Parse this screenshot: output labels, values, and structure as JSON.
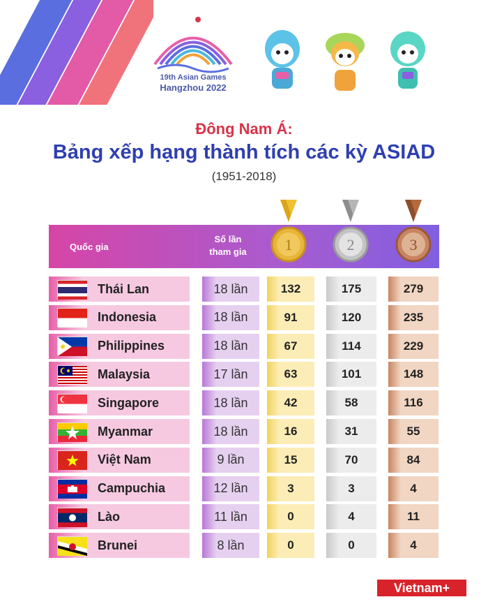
{
  "logo": {
    "line1": "19th Asian Games",
    "line2": "Hangzhou 2022"
  },
  "title": {
    "line1": "Đông Nam Á:",
    "line2": "Bảng xếp hạng thành tích các kỳ ASIAD",
    "line3": "(1951-2018)"
  },
  "header": {
    "country": "Quốc gia",
    "count_line1": "Số lần",
    "count_line2": "tham gia",
    "gold_number": "1",
    "silver_number": "2",
    "bronze_number": "3"
  },
  "brand": "Vietnam+",
  "chart_data": {
    "type": "table",
    "columns": [
      "Quốc gia",
      "Số lần tham gia",
      "Vàng",
      "Bạc",
      "Đồng"
    ],
    "rows": [
      {
        "country": "Thái Lan",
        "participations": "18 lần",
        "gold": 132,
        "silver": 175,
        "bronze": 279,
        "flag": "thailand"
      },
      {
        "country": "Indonesia",
        "participations": "18 lần",
        "gold": 91,
        "silver": 120,
        "bronze": 235,
        "flag": "indonesia"
      },
      {
        "country": "Philippines",
        "participations": "18 lần",
        "gold": 67,
        "silver": 114,
        "bronze": 229,
        "flag": "philippines"
      },
      {
        "country": "Malaysia",
        "participations": "17 lần",
        "gold": 63,
        "silver": 101,
        "bronze": 148,
        "flag": "malaysia"
      },
      {
        "country": "Singapore",
        "participations": "18 lần",
        "gold": 42,
        "silver": 58,
        "bronze": 116,
        "flag": "singapore"
      },
      {
        "country": "Myanmar",
        "participations": "18 lần",
        "gold": 16,
        "silver": 31,
        "bronze": 55,
        "flag": "myanmar"
      },
      {
        "country": "Việt Nam",
        "participations": "9 lần",
        "gold": 15,
        "silver": 70,
        "bronze": 84,
        "flag": "vietnam"
      },
      {
        "country": "Campuchia",
        "participations": "12 lần",
        "gold": 3,
        "silver": 3,
        "bronze": 4,
        "flag": "cambodia"
      },
      {
        "country": "Lào",
        "participations": "11 lần",
        "gold": 0,
        "silver": 4,
        "bronze": 11,
        "flag": "laos"
      },
      {
        "country": "Brunei",
        "participations": "8 lần",
        "gold": 0,
        "silver": 0,
        "bronze": 4,
        "flag": "brunei"
      }
    ]
  },
  "colors": {
    "country_col": [
      "#e85fa8",
      "#f6c9e1"
    ],
    "count_col": [
      "#b877d6",
      "#e6d0f0"
    ],
    "gold_col": [
      "#f2d25b",
      "#fbedb5"
    ],
    "silver_col": [
      "#c9c9c9",
      "#ececec"
    ],
    "bronze_col": [
      "#c98461",
      "#f1d6c3"
    ],
    "title_red": "#d8344a",
    "title_blue": "#2f3fb0"
  }
}
